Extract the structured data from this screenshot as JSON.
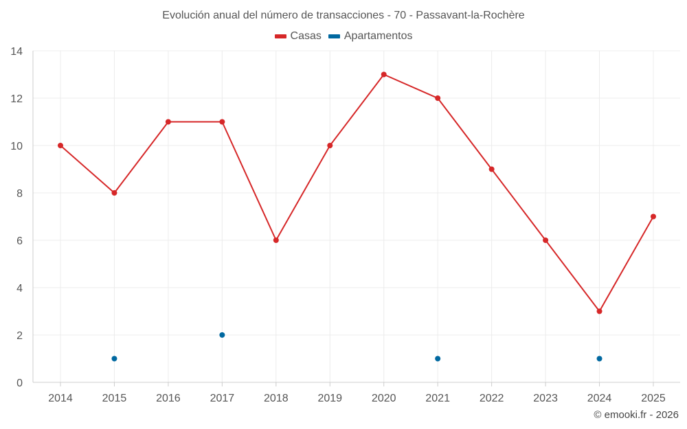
{
  "chart_data": {
    "type": "line",
    "title": "Evolución anual del número de transacciones - 70 - Passavant-la-Rochère",
    "categories": [
      "2014",
      "2015",
      "2016",
      "2017",
      "2018",
      "2019",
      "2020",
      "2021",
      "2022",
      "2023",
      "2024",
      "2025"
    ],
    "series": [
      {
        "name": "Casas",
        "color": "#d62728",
        "values": [
          10,
          8,
          11,
          11,
          6,
          10,
          13,
          12,
          9,
          6,
          3,
          7
        ]
      },
      {
        "name": "Apartamentos",
        "color": "#0068a0",
        "values": [
          null,
          1,
          null,
          2,
          null,
          null,
          null,
          1,
          null,
          null,
          1,
          null
        ]
      }
    ],
    "ylim": [
      0,
      14
    ],
    "yticks": [
      0,
      2,
      4,
      6,
      8,
      10,
      12,
      14
    ],
    "xlabel": "",
    "ylabel": "",
    "grid": true,
    "legend": "top-center"
  },
  "credit": "© emooki.fr - 2026"
}
